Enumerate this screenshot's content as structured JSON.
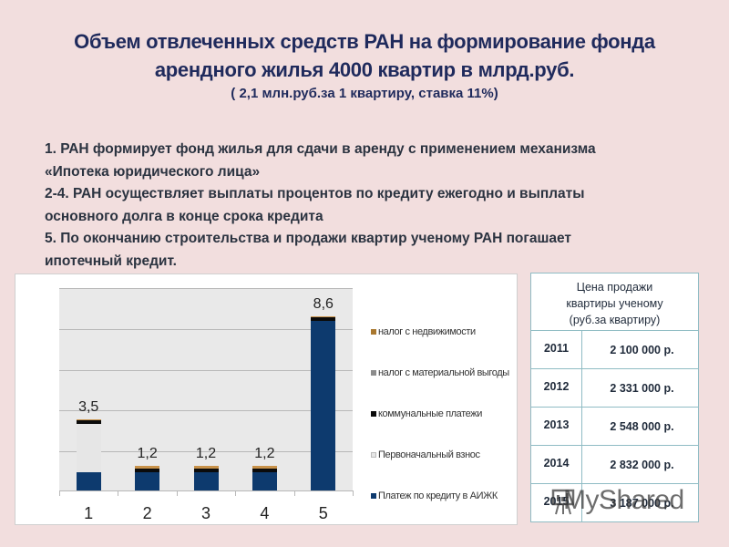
{
  "header": {
    "title_line1": "Объем отвлеченных средств РАН на формирование фонда",
    "title_line2": "арендного жилья 4000 квартир  в  млрд.руб.",
    "subtitle": "( 2,1 млн.руб.за 1 квартиру, ставка 11%)"
  },
  "points": [
    " 1.    РАН формирует фонд жилья для сдачи в аренду с применением механизма",
    "«Ипотека юридического лица»",
    "2-4. РАН осуществляет выплаты процентов по кредиту ежегодно и выплаты",
    "основного долга в конце срока кредита",
    "5.     По окончанию строительства и продажи квартир  ученому  РАН погашает",
    "ипотечный кредит."
  ],
  "chart_data": {
    "type": "bar",
    "stacked": true,
    "title": "",
    "xlabel": "",
    "ylabel": "",
    "categories": [
      "1",
      "2",
      "3",
      "4",
      "5"
    ],
    "totals_labels": [
      "3,5",
      "1,2",
      "1,2",
      "1,2",
      "8,6"
    ],
    "totals": [
      3.5,
      1.2,
      1.2,
      1.2,
      8.6
    ],
    "ylim": [
      0,
      10
    ],
    "grid": true,
    "legend_position": "right",
    "series": [
      {
        "name": "Платеж по кредиту в АИЖК",
        "color": "#0d3a6e",
        "values": [
          0.9,
          0.9,
          0.9,
          0.9,
          8.4
        ]
      },
      {
        "name": "Первоначальный взнос",
        "color": "#e6e6e6",
        "values": [
          2.4,
          0,
          0,
          0,
          0
        ]
      },
      {
        "name": "коммунальные платежи",
        "color": "#0b0b0b",
        "values": [
          0.15,
          0.2,
          0.2,
          0.2,
          0.15
        ]
      },
      {
        "name": "налог с материальной выгоды",
        "color": "#8c8c8c",
        "values": [
          0.0,
          0.0,
          0.0,
          0.0,
          0.0
        ]
      },
      {
        "name": "налог с недвижимости",
        "color": "#c8924a",
        "values": [
          0.05,
          0.1,
          0.1,
          0.1,
          0.05
        ]
      }
    ]
  },
  "legend": {
    "items": [
      {
        "label": "налог с недвижимости",
        "color": "#a9782f"
      },
      {
        "label": "налог с материальной выгоды",
        "color": "#8c8c8c"
      },
      {
        "label": "коммунальные платежи",
        "color": "#0b0b0b"
      },
      {
        "label": "Первоначальный взнос",
        "color": "#e6e6e6"
      },
      {
        "label": "Платеж по кредиту в АИЖК",
        "color": "#0d3a6e"
      }
    ]
  },
  "price_table": {
    "header": "Цена продажи квартиры ученому (руб.за квартиру)",
    "header_lines": [
      "Цена продажи",
      "квартиры ученому",
      "(руб.за квартиру)"
    ],
    "rows": [
      {
        "year": "2011",
        "price": "2 100 000 р."
      },
      {
        "year": "2012",
        "price": "2 331 000 р."
      },
      {
        "year": "2013",
        "price": "2 548 000 р."
      },
      {
        "year": "2014",
        "price": "2 832 000 р."
      },
      {
        "year": "2015",
        "price": "3 187 000 р."
      }
    ]
  },
  "watermark": {
    "text": "MyShared"
  }
}
